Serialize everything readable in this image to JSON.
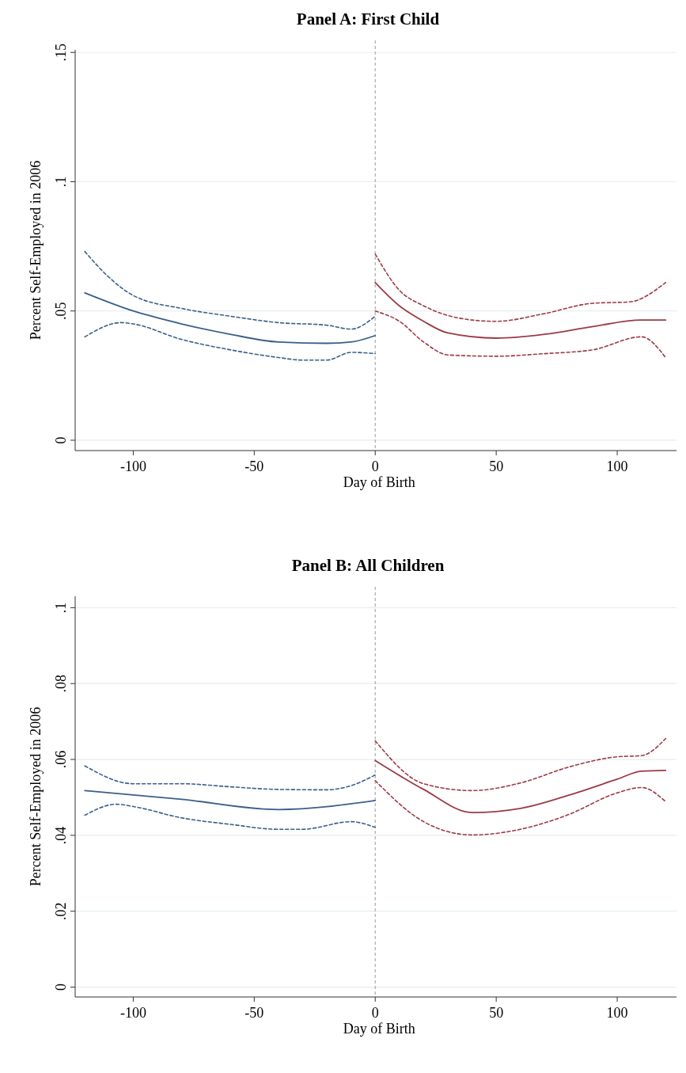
{
  "chart_data": [
    {
      "type": "line",
      "title": "Panel A: First Child",
      "xlabel": "Day of Birth",
      "ylabel": "Percent Self-Employed in 2006",
      "xlim": [
        -124,
        124.5
      ],
      "xticks": [
        -100,
        -50,
        0,
        50,
        100
      ],
      "ylim": [
        -0.004,
        0.151
      ],
      "yticks": [
        0,
        {
          "value": 0.05,
          "label": ".05"
        },
        {
          "value": 0.1,
          "label": ".1"
        },
        {
          "value": 0.15,
          "label": ".15"
        }
      ],
      "grid": "y",
      "ref_lines": [
        {
          "axis": "x",
          "value": 0,
          "color": "#aaaaaa",
          "line_style": "dashed"
        }
      ],
      "series": [
        {
          "color": "#3a5f8a",
          "line_style": "solid",
          "x": [
            -120,
            -100,
            -80,
            -60,
            -40,
            -20,
            -10,
            0
          ],
          "values": [
            0.057,
            0.05,
            0.045,
            0.041,
            0.038,
            0.0375,
            0.038,
            0.0405
          ]
        },
        {
          "color": "#3a5f8a",
          "line_style": "dashed",
          "x": [
            -120,
            -110,
            -100,
            -80,
            -60,
            -40,
            -20,
            -10,
            0
          ],
          "values": [
            0.073,
            0.063,
            0.056,
            0.051,
            0.048,
            0.0455,
            0.0445,
            0.043,
            0.048
          ]
        },
        {
          "color": "#3a5f8a",
          "line_style": "dashed",
          "x": [
            -120,
            -105,
            -100,
            -80,
            -60,
            -40,
            -30,
            -20,
            -10,
            0
          ],
          "values": [
            0.04,
            0.0455,
            0.045,
            0.039,
            0.035,
            0.032,
            0.031,
            0.031,
            0.034,
            0.0335
          ]
        },
        {
          "color": "#9b3b45",
          "line_style": "solid",
          "x": [
            0,
            10,
            20,
            30,
            50,
            70,
            90,
            110,
            120
          ],
          "values": [
            0.061,
            0.052,
            0.046,
            0.0415,
            0.0395,
            0.041,
            0.044,
            0.0465,
            0.0465
          ]
        },
        {
          "color": "#9b3b45",
          "line_style": "dashed",
          "x": [
            0,
            10,
            20,
            40,
            50,
            70,
            90,
            105,
            120
          ],
          "values": [
            0.072,
            0.058,
            0.052,
            0.0465,
            0.046,
            0.049,
            0.053,
            0.0535,
            0.061
          ]
        },
        {
          "color": "#9b3b45",
          "line_style": "dashed",
          "x": [
            0,
            10,
            20,
            30,
            50,
            70,
            90,
            110,
            120
          ],
          "values": [
            0.05,
            0.046,
            0.038,
            0.033,
            0.0325,
            0.0335,
            0.035,
            0.04,
            0.032
          ]
        }
      ]
    },
    {
      "type": "line",
      "title": "Panel B: All Children",
      "xlabel": "Day of Birth",
      "ylabel": "Percent Self-Employed in 2006",
      "xlim": [
        -124,
        124.5
      ],
      "xticks": [
        -100,
        -50,
        0,
        50,
        100
      ],
      "ylim": [
        -0.0026,
        0.103
      ],
      "yticks": [
        0,
        {
          "value": 0.02,
          "label": ".02"
        },
        {
          "value": 0.04,
          "label": ".04"
        },
        {
          "value": 0.06,
          "label": ".06"
        },
        {
          "value": 0.08,
          "label": ".08"
        },
        {
          "value": 0.1,
          "label": ".1"
        }
      ],
      "grid": "y",
      "ref_lines": [
        {
          "axis": "x",
          "value": 0,
          "color": "#aaaaaa",
          "line_style": "dashed"
        }
      ],
      "series": [
        {
          "color": "#3a5f8a",
          "line_style": "solid",
          "x": [
            -120,
            -80,
            -40,
            0
          ],
          "values": [
            0.0518,
            0.0495,
            0.0468,
            0.0492
          ]
        },
        {
          "color": "#3a5f8a",
          "line_style": "dashed",
          "x": [
            -120,
            -100,
            -80,
            -60,
            -40,
            -20,
            -10,
            0
          ],
          "values": [
            0.0583,
            0.0536,
            0.0536,
            0.0528,
            0.0521,
            0.052,
            0.0531,
            0.0559
          ]
        },
        {
          "color": "#3a5f8a",
          "line_style": "dashed",
          "x": [
            -120,
            -107,
            -100,
            -80,
            -60,
            -40,
            -30,
            -10,
            0
          ],
          "values": [
            0.0453,
            0.0482,
            0.0476,
            0.0446,
            0.0429,
            0.0416,
            0.0416,
            0.0436,
            0.0421
          ]
        },
        {
          "color": "#9b3b45",
          "line_style": "solid",
          "x": [
            0,
            20,
            40,
            60,
            80,
            100,
            110,
            120
          ],
          "values": [
            0.0597,
            0.0521,
            0.046,
            0.0471,
            0.0506,
            0.0548,
            0.0569,
            0.0571
          ]
        },
        {
          "color": "#9b3b45",
          "line_style": "dashed",
          "x": [
            0,
            20,
            40,
            60,
            80,
            100,
            110,
            120
          ],
          "values": [
            0.0649,
            0.0536,
            0.0518,
            0.0538,
            0.058,
            0.0607,
            0.061,
            0.0655
          ]
        },
        {
          "color": "#9b3b45",
          "line_style": "dashed",
          "x": [
            0,
            20,
            40,
            60,
            80,
            100,
            110,
            120
          ],
          "values": [
            0.0544,
            0.0436,
            0.0401,
            0.0416,
            0.0455,
            0.0512,
            0.0526,
            0.0489
          ]
        }
      ]
    }
  ]
}
